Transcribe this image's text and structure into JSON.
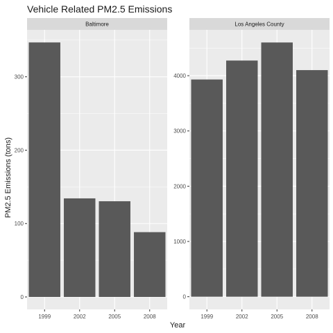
{
  "chart_data": {
    "type": "bar",
    "title": "Vehicle Related PM2.5 Emissions",
    "xlabel": "Year",
    "ylabel": "PM2.5 Emissions (tons)",
    "categories": [
      "1999",
      "2002",
      "2005",
      "2008"
    ],
    "facet_scales": "free_y",
    "grid": true,
    "panel_background": "#ebebeb",
    "strip_background": "#d9d9d9",
    "gridline_color": "#ffffff",
    "bar_color": "#595959",
    "panels": [
      {
        "strip_label": "Baltimore",
        "values": [
          346.8,
          134.3,
          130.4,
          88.3
        ],
        "ylim": [
          -17,
          364
        ],
        "yticks": [
          0,
          100,
          200,
          300
        ]
      },
      {
        "strip_label": "Los Angeles County",
        "values": [
          3931,
          4274,
          4601,
          4101
        ],
        "ylim": [
          -230,
          4830
        ],
        "yticks": [
          0,
          1000,
          2000,
          3000,
          4000
        ]
      }
    ]
  }
}
